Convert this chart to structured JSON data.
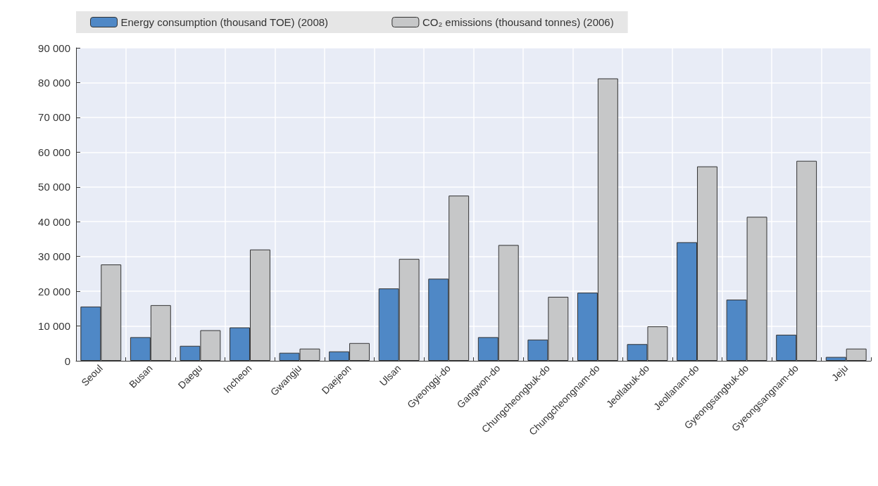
{
  "chart_data": {
    "type": "bar",
    "categories": [
      "Seoul",
      "Busan",
      "Daegu",
      "Incheon",
      "Gwangju",
      "Daejeon",
      "Ulsan",
      "Gyeonggi-do",
      "Gangwon-do",
      "Chungcheongbuk-do",
      "Chungcheongnam-do",
      "Jeollabuk-do",
      "Jeollanam-do",
      "Gyeongsangbuk-do",
      "Gyeongsangnam-do",
      "Jeju"
    ],
    "series": [
      {
        "name": "Energy consumption (thousand TOE) (2008)",
        "color": "#4f88c6",
        "values": [
          15600,
          6800,
          4300,
          9600,
          2300,
          2700,
          20800,
          23600,
          6800,
          6100,
          19600,
          4800,
          34100,
          17600,
          7500,
          1100
        ]
      },
      {
        "name": "CO₂ emissions (thousand tonnes) (2006)",
        "color": "#c6c7c8",
        "values": [
          27700,
          16000,
          8800,
          32000,
          3500,
          5100,
          29300,
          47500,
          33300,
          18400,
          81200,
          9900,
          55900,
          41400,
          57500,
          3500
        ]
      }
    ],
    "ylim": [
      0,
      90000
    ],
    "yticks": [
      0,
      10000,
      20000,
      30000,
      40000,
      50000,
      60000,
      70000,
      80000,
      90000
    ],
    "grid": true,
    "legend": "top"
  }
}
